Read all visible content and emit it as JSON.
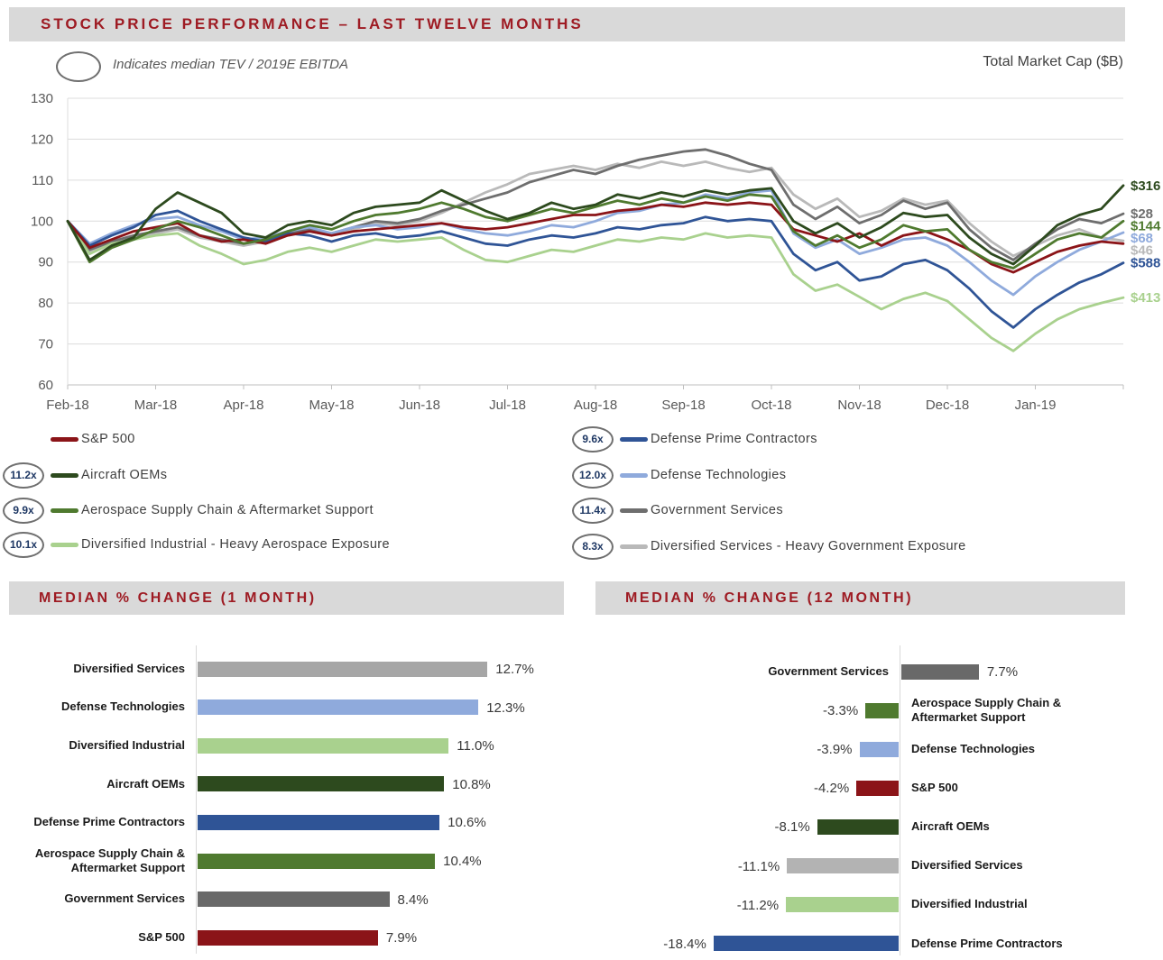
{
  "header": {
    "title": "STOCK PRICE PERFORMANCE – LAST TWELVE MONTHS",
    "oval_note": "Indicates median TEV / 2019E EBITDA",
    "market_cap_label": "Total Market Cap ($B)"
  },
  "colors": {
    "banner_bg": "#D9D9D9",
    "banner_text": "#9E1B23",
    "axis_text": "#595959",
    "gridline": "#DCDCDC",
    "axis_line": "#BFBFBF"
  },
  "chart_data": [
    {
      "type": "line",
      "title": "Stock Price Performance – Last Twelve Months (indexed to 100)",
      "xlabel": "",
      "ylabel": "",
      "ylim": [
        60,
        130
      ],
      "y_ticks": [
        60,
        70,
        80,
        90,
        100,
        110,
        120,
        130
      ],
      "x_tick_labels": [
        "Feb-18",
        "Mar-18",
        "Apr-18",
        "May-18",
        "Jun-18",
        "Jul-18",
        "Aug-18",
        "Sep-18",
        "Oct-18",
        "Nov-18",
        "Dec-18",
        "Jan-19"
      ],
      "grid": true,
      "legend_position": "below",
      "series": [
        {
          "name": "S&P 500",
          "color": "#8B1418",
          "tev_multiple": null,
          "market_cap": null,
          "legend": "left",
          "z": 5,
          "values": [
            100,
            93.5,
            95.5,
            97.5,
            98.5,
            99.5,
            96.5,
            95,
            95.5,
            94.5,
            96.5,
            97.5,
            96.5,
            97.5,
            98,
            98.5,
            99,
            99.5,
            98.5,
            98,
            98.5,
            99.5,
            100.5,
            101.5,
            101.5,
            102.5,
            103,
            104,
            103.5,
            104.5,
            104,
            104.5,
            104,
            98,
            96.5,
            95,
            97,
            94,
            96.5,
            97.5,
            95.5,
            93,
            89.5,
            87.5,
            90,
            92.5,
            94,
            95,
            94.5
          ]
        },
        {
          "name": "Aircraft OEMs",
          "color": "#2D4A1E",
          "tev_multiple": "11.2x",
          "market_cap": "$316",
          "legend": "left",
          "z": 7,
          "values": [
            100,
            90.5,
            94,
            96,
            103,
            107,
            104.5,
            102,
            97,
            96,
            99,
            100,
            99,
            102,
            103.5,
            104,
            104.5,
            107.5,
            105,
            102.5,
            100.5,
            102,
            104.5,
            103,
            104,
            106.5,
            105.5,
            107,
            106,
            107.5,
            106.5,
            107.5,
            108,
            100,
            97,
            99.5,
            96,
            98.5,
            102,
            101,
            101.5,
            96,
            92,
            89.5,
            94,
            99,
            101.5,
            103,
            108.7
          ]
        },
        {
          "name": "Aerospace Supply Chain & Aftermarket Support",
          "color": "#4F7A2F",
          "tev_multiple": "9.9x",
          "market_cap": "$144",
          "legend": "left",
          "z": 6,
          "values": [
            100,
            90,
            93.5,
            95.5,
            98,
            100,
            98.5,
            96.5,
            94.5,
            95.5,
            97.5,
            99,
            98,
            100,
            101.5,
            102,
            103,
            104.5,
            103,
            101,
            100,
            101.5,
            103,
            102,
            103.5,
            105,
            104,
            105.5,
            104.5,
            106,
            105,
            106.5,
            106,
            97.5,
            94,
            96.5,
            93.5,
            95.5,
            99,
            97.5,
            98,
            93,
            90,
            88.5,
            92,
            95.5,
            97,
            96,
            100
          ]
        },
        {
          "name": "Diversified Industrial - Heavy Aerospace Exposure",
          "color": "#A9D18E",
          "tev_multiple": "10.1x",
          "market_cap": "$413",
          "legend": "left",
          "z": 3,
          "values": [
            100,
            92,
            94.5,
            95.5,
            96.5,
            97,
            94,
            92,
            89.5,
            90.5,
            92.5,
            93.5,
            92.5,
            94,
            95.5,
            95,
            95.5,
            96,
            93,
            90.5,
            90,
            91.5,
            93,
            92.5,
            94,
            95.5,
            95,
            96,
            95.5,
            97,
            96,
            96.5,
            96,
            87,
            83,
            84.5,
            81.5,
            78.5,
            81,
            82.5,
            80.5,
            76,
            71.5,
            68.3,
            72.5,
            76,
            78.5,
            80,
            81.3
          ]
        },
        {
          "name": "Defense Prime Contractors",
          "color": "#2F5496",
          "tev_multiple": "9.6x",
          "market_cap": "$588",
          "legend": "right",
          "z": 4,
          "values": [
            100,
            94,
            96.5,
            98.5,
            101.5,
            102.5,
            100,
            98,
            96,
            95,
            97,
            96.5,
            95,
            96.5,
            97,
            96,
            96.5,
            97.5,
            96,
            94.5,
            94,
            95.5,
            96.5,
            96,
            97,
            98.5,
            98,
            99,
            99.5,
            101,
            100,
            100.5,
            100,
            92,
            88,
            90,
            85.5,
            86.5,
            89.5,
            90.5,
            88,
            83.5,
            78,
            74,
            78.5,
            82,
            85,
            87,
            89.8
          ]
        },
        {
          "name": "Defense Technologies",
          "color": "#8FAADC",
          "tev_multiple": "12.0x",
          "market_cap": "$68",
          "legend": "right",
          "z": 2,
          "values": [
            100,
            94.5,
            97,
            99,
            100.5,
            101,
            99,
            97.5,
            95.5,
            96,
            97.5,
            98.5,
            97,
            98.5,
            99,
            98,
            98.5,
            99.5,
            98,
            97,
            96.5,
            97.5,
            99,
            98.5,
            100,
            102,
            102.5,
            104,
            104.5,
            106.5,
            105.5,
            107,
            107.5,
            97,
            93.5,
            95.5,
            92,
            93.5,
            95.5,
            96,
            94,
            90,
            85.5,
            82,
            86.5,
            90,
            93,
            95,
            97.2
          ]
        },
        {
          "name": "Government Services",
          "color": "#6E6E6E",
          "tev_multiple": "11.4x",
          "market_cap": "$28",
          "legend": "right",
          "z": 1,
          "values": [
            100,
            93,
            95,
            96.5,
            97.5,
            98.5,
            96.5,
            95.5,
            94.5,
            95.5,
            97,
            98,
            97,
            98.5,
            100,
            99.5,
            100.5,
            102.5,
            104,
            105.5,
            107,
            109.5,
            111,
            112.5,
            111.5,
            113.5,
            115,
            116,
            117,
            117.5,
            116,
            114,
            112.5,
            104,
            100.5,
            103.5,
            99.5,
            101.5,
            105,
            103,
            104.5,
            98,
            93.5,
            90.5,
            94.5,
            98,
            100.5,
            99.5,
            101.8
          ]
        },
        {
          "name": "Diversified Services - Heavy Government Exposure",
          "color": "#B9B9B9",
          "tev_multiple": "8.3x",
          "market_cap": "$46",
          "legend": "right",
          "z": 0,
          "values": [
            100,
            92.5,
            94.5,
            96,
            97,
            98,
            96,
            95,
            94,
            95,
            96.5,
            97.5,
            96.5,
            98,
            99.5,
            99,
            100,
            102,
            104.5,
            107,
            109,
            111.5,
            112.5,
            113.5,
            112.5,
            114,
            113,
            114.5,
            113.5,
            114.5,
            113,
            112,
            113,
            106.5,
            103,
            105.5,
            101,
            102.5,
            105.5,
            104,
            105,
            99.5,
            95,
            91.5,
            94,
            96.5,
            98,
            96,
            95.2
          ]
        }
      ]
    },
    {
      "type": "bar",
      "title": "MEDIAN % CHANGE (1 MONTH)",
      "orientation": "horizontal",
      "categories": [
        "Diversified Services",
        "Defense Technologies",
        "Diversified Industrial",
        "Aircraft OEMs",
        "Defense Prime Contractors",
        "Aerospace Supply Chain &\nAftermarket Support",
        "Government Services",
        "S&P 500"
      ],
      "values": [
        12.7,
        12.3,
        11.0,
        10.8,
        10.6,
        10.4,
        8.4,
        7.9
      ],
      "labels": [
        "12.7%",
        "12.3%",
        "11.0%",
        "10.8%",
        "10.6%",
        "10.4%",
        "8.4%",
        "7.9%"
      ],
      "colors": [
        "#A6A6A6",
        "#8FAADC",
        "#A9D18E",
        "#2D4A1E",
        "#2F5496",
        "#4F7A2F",
        "#696969",
        "#8B1418"
      ]
    },
    {
      "type": "bar",
      "title": "MEDIAN % CHANGE (12 MONTH)",
      "orientation": "horizontal",
      "categories": [
        "Government Services",
        "Aerospace Supply Chain &\nAftermarket Support",
        "Defense Technologies",
        "S&P 500",
        "Aircraft OEMs",
        "Diversified Services",
        "Diversified Industrial",
        "Defense Prime Contractors"
      ],
      "values": [
        7.7,
        -3.3,
        -3.9,
        -4.2,
        -8.1,
        -11.1,
        -11.2,
        -18.4
      ],
      "labels": [
        "7.7%",
        "-3.3%",
        "-3.9%",
        "-4.2%",
        "-8.1%",
        "-11.1%",
        "-11.2%",
        "-18.4%"
      ],
      "colors": [
        "#696969",
        "#4F7A2F",
        "#8FAADC",
        "#8B1418",
        "#2D4A1E",
        "#B3B3B3",
        "#A9D18E",
        "#2F5496"
      ]
    }
  ]
}
